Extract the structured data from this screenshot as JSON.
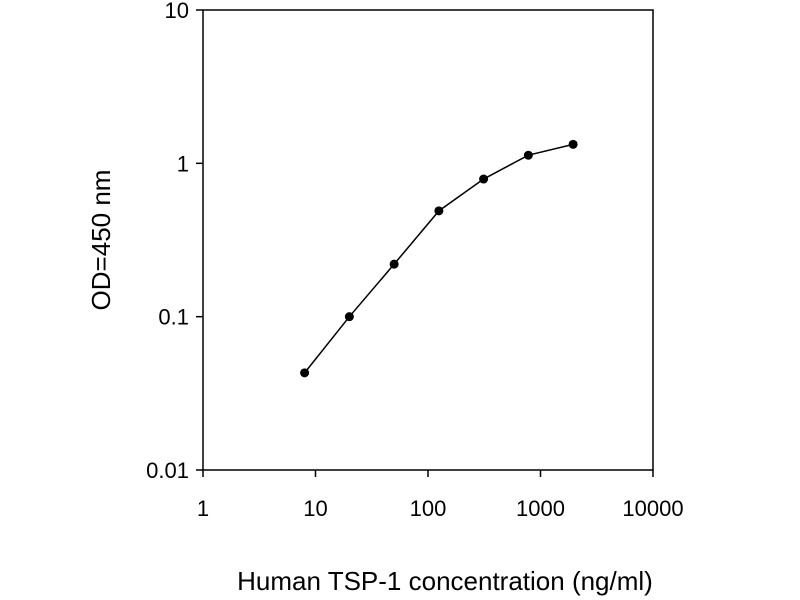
{
  "chart_data": {
    "type": "scatter",
    "title": "",
    "xlabel": "Human TSP-1 concentration (ng/ml)",
    "ylabel": "OD=450 nm",
    "x_scale": "log",
    "y_scale": "log",
    "xlim": [
      1,
      10000
    ],
    "ylim": [
      0.01,
      10
    ],
    "x_ticks": [
      1,
      10,
      100,
      1000,
      10000
    ],
    "x_tick_labels": [
      "1",
      "10",
      "100",
      "1000",
      "10000"
    ],
    "y_ticks": [
      0.01,
      0.1,
      1,
      10
    ],
    "y_tick_labels": [
      "0.01",
      "0.1",
      "1",
      "10"
    ],
    "grid": false,
    "legend": "none",
    "series": [
      {
        "x": [
          8,
          20,
          50,
          125,
          312,
          780,
          1950
        ],
        "y": [
          0.043,
          0.1,
          0.22,
          0.49,
          0.79,
          1.13,
          1.33
        ],
        "marker": "circle",
        "line": true,
        "color": "#000000"
      }
    ]
  }
}
